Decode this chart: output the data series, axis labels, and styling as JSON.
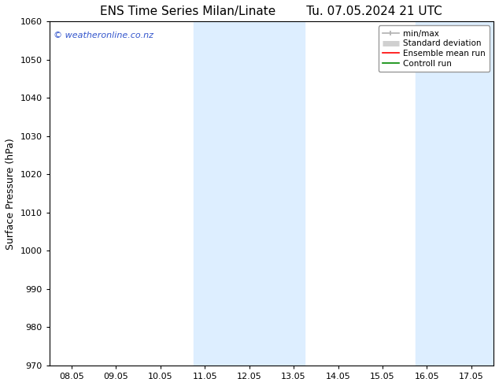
{
  "title_left": "ENS Time Series Milan/Linate",
  "title_right": "Tu. 07.05.2024 21 UTC",
  "ylabel": "Surface Pressure (hPa)",
  "ylim": [
    970,
    1060
  ],
  "yticks": [
    970,
    980,
    990,
    1000,
    1010,
    1020,
    1030,
    1040,
    1050,
    1060
  ],
  "xtick_labels": [
    "08.05",
    "09.05",
    "10.05",
    "11.05",
    "12.05",
    "13.05",
    "14.05",
    "15.05",
    "16.05",
    "17.05"
  ],
  "x_values": [
    8.05,
    9.05,
    10.05,
    11.05,
    12.05,
    13.05,
    14.05,
    15.05,
    16.05,
    17.05
  ],
  "xlim": [
    7.55,
    17.55
  ],
  "shaded_regions": [
    {
      "x_start": 10.8,
      "x_end": 13.3,
      "color": "#ddeeff"
    },
    {
      "x_start": 15.8,
      "x_end": 17.55,
      "color": "#ddeeff"
    }
  ],
  "watermark_text": "© weatheronline.co.nz",
  "watermark_color": "#3355cc",
  "legend_entries": [
    {
      "label": "min/max",
      "color": "#b0b0b0",
      "linewidth": 1.2,
      "linestyle": "-"
    },
    {
      "label": "Standard deviation",
      "color": "#d0d0d0",
      "linewidth": 5,
      "linestyle": "-"
    },
    {
      "label": "Ensemble mean run",
      "color": "#ff0000",
      "linewidth": 1.2,
      "linestyle": "-"
    },
    {
      "label": "Controll run",
      "color": "#008800",
      "linewidth": 1.2,
      "linestyle": "-"
    }
  ],
  "background_color": "#ffffff",
  "title_fontsize": 11,
  "tick_fontsize": 8,
  "ylabel_fontsize": 9,
  "watermark_fontsize": 8,
  "legend_fontsize": 7.5
}
